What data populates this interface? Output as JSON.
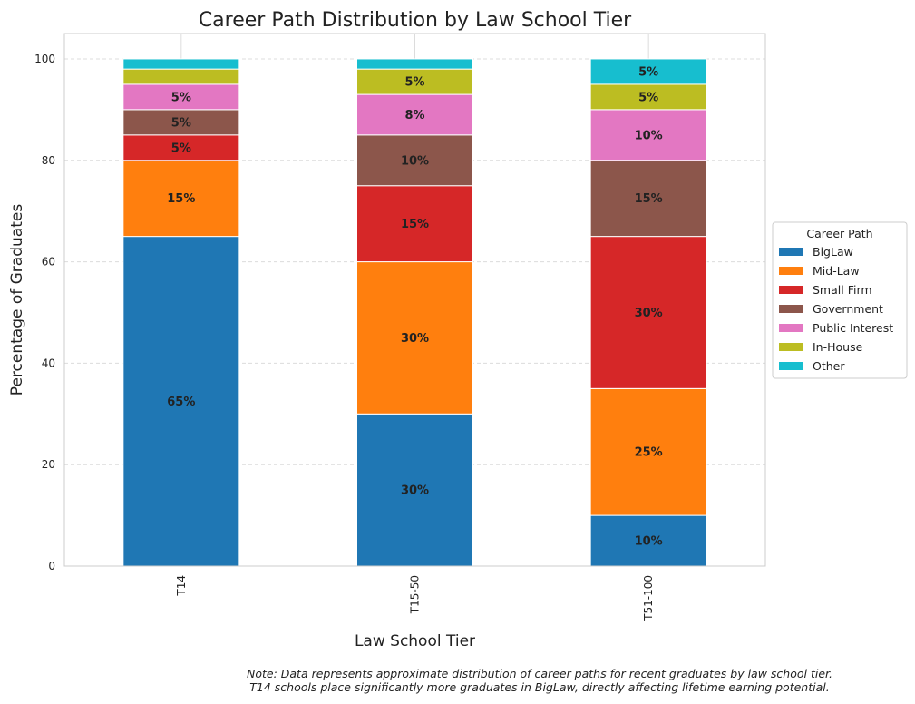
{
  "chart_data": {
    "type": "bar",
    "stacked": true,
    "title": "Career Path Distribution by Law School Tier",
    "xlabel": "Law School Tier",
    "ylabel": "Percentage of Graduates",
    "categories": [
      "T14",
      "T15-50",
      "T51-100"
    ],
    "ylim": [
      0,
      105
    ],
    "yticks": [
      0,
      20,
      40,
      60,
      80,
      100
    ],
    "grid": true,
    "legend": {
      "title": "Career Path",
      "placement": "center-right outside"
    },
    "series": [
      {
        "name": "BigLaw",
        "color": "#1f77b4",
        "values": [
          65,
          30,
          10
        ]
      },
      {
        "name": "Mid-Law",
        "color": "#ff7f0e",
        "values": [
          15,
          30,
          25
        ]
      },
      {
        "name": "Small Firm",
        "color": "#d62728",
        "values": [
          5,
          15,
          30
        ]
      },
      {
        "name": "Government",
        "color": "#8c564b",
        "values": [
          5,
          10,
          15
        ]
      },
      {
        "name": "Public Interest",
        "color": "#e377c2",
        "values": [
          5,
          8,
          10
        ]
      },
      {
        "name": "In-House",
        "color": "#bcbd22",
        "values": [
          3,
          5,
          5
        ]
      },
      {
        "name": "Other",
        "color": "#17becf",
        "values": [
          2,
          2,
          5
        ]
      }
    ],
    "note": [
      "Note: Data represents approximate distribution of career paths for recent graduates by law school tier.",
      "T14 schools place significantly more graduates in BigLaw, directly affecting lifetime earning potential."
    ]
  }
}
